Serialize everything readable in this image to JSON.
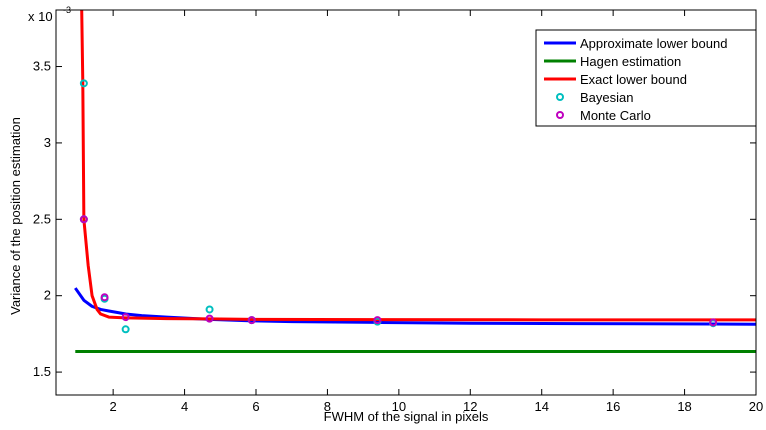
{
  "chart_data": {
    "type": "line",
    "title": "",
    "xlabel": "FWHM  of the signal in pixels",
    "ylabel": "Variance of the position estimation",
    "y_multiplier_label": "x 10",
    "y_multiplier_exp": "-3",
    "xlim": [
      0.4,
      20
    ],
    "ylim": [
      1.35,
      3.87
    ],
    "xticks": [
      2,
      4,
      6,
      8,
      10,
      12,
      14,
      16,
      18,
      20
    ],
    "xtick_labels": [
      "2",
      "4",
      "6",
      "8",
      "10",
      "12",
      "14",
      "16",
      "18",
      "20"
    ],
    "yticks": [
      1.5,
      2,
      2.5,
      3,
      3.5
    ],
    "ytick_labels": [
      "1.5",
      "2",
      "2.5",
      "3",
      "3.5"
    ],
    "grid": false,
    "legend_position": "top-right",
    "series": [
      {
        "name": "Approximate lower bound",
        "kind": "line",
        "color": "#0000ff",
        "x": [
          0.94,
          1.18,
          1.41,
          1.65,
          1.88,
          2.12,
          2.35,
          2.8,
          3.5,
          4.7,
          5.9,
          7,
          9.4,
          12,
          15,
          18.8,
          20
        ],
        "y": [
          2.05,
          1.97,
          1.93,
          1.91,
          1.9,
          1.89,
          1.88,
          1.87,
          1.86,
          1.845,
          1.835,
          1.83,
          1.825,
          1.82,
          1.817,
          1.815,
          1.813
        ]
      },
      {
        "name": "Hagen estimation",
        "kind": "line",
        "color": "#008000",
        "x": [
          0.94,
          20
        ],
        "y": [
          1.635,
          1.635
        ]
      },
      {
        "name": "Exact lower bound",
        "kind": "line",
        "color": "#ff0000",
        "x": [
          1.12,
          1.15,
          1.18,
          1.22,
          1.3,
          1.41,
          1.55,
          1.65,
          1.88,
          2.35,
          3.5,
          4.7,
          5.9,
          9.4,
          14,
          18.8,
          20
        ],
        "y": [
          3.87,
          3.4,
          2.5,
          2.4,
          2.2,
          2.0,
          1.91,
          1.88,
          1.86,
          1.855,
          1.85,
          1.848,
          1.845,
          1.843,
          1.842,
          1.842,
          1.842
        ]
      },
      {
        "name": "Bayesian",
        "kind": "marker",
        "color": "#00bfbf",
        "x": [
          1.18,
          1.18,
          1.76,
          2.35,
          4.7,
          5.88,
          9.4,
          18.8
        ],
        "y": [
          3.39,
          2.5,
          1.98,
          1.78,
          1.91,
          1.84,
          1.83,
          1.82
        ]
      },
      {
        "name": "Monte Carlo",
        "kind": "marker",
        "color": "#bf00bf",
        "x": [
          1.18,
          1.76,
          2.35,
          4.7,
          5.88,
          9.4,
          18.8
        ],
        "y": [
          2.5,
          1.99,
          1.86,
          1.85,
          1.84,
          1.84,
          1.825
        ]
      }
    ]
  }
}
